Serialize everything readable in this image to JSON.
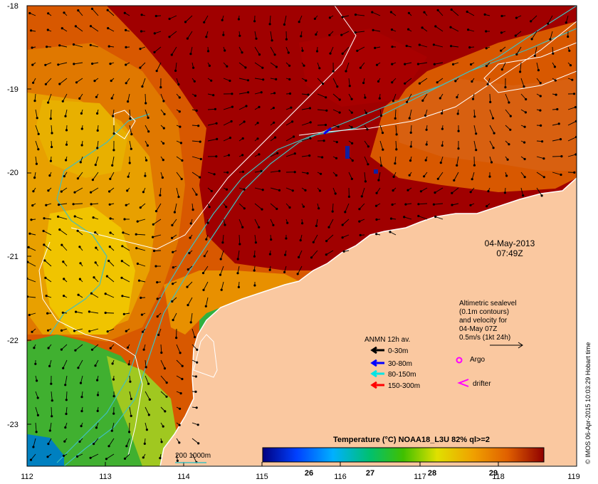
{
  "map": {
    "lon_ticks": [
      "112",
      "113",
      "114",
      "115",
      "116",
      "117",
      "118",
      "119"
    ],
    "lat_ticks": [
      "-18",
      "-19",
      "-20",
      "-21",
      "-22",
      "-23"
    ],
    "lon_range": [
      112,
      119
    ],
    "lat_range": [
      -18,
      -23.5
    ],
    "credit": "© IMOS 06-Apr-2015 10:03:29 Hobart time"
  },
  "date": {
    "day": "04-May-2013",
    "time": "07:49Z"
  },
  "sealevel_note": {
    "lines": [
      "Altimetric sealevel",
      "(0.1m contours)",
      "and velocity for",
      "04-May 07Z",
      "0.5m/s (1kt 24h)"
    ]
  },
  "legend": {
    "title": "ANMN 12h av.",
    "items": [
      {
        "label": "0-30m",
        "color": "#000000"
      },
      {
        "label": "30-80m",
        "color": "#0000ff"
      },
      {
        "label": "80-150m",
        "color": "#00e5e5"
      },
      {
        "label": "150-300m",
        "color": "#ff0000"
      }
    ],
    "argo": "Argo",
    "drifter": "drifter",
    "argo_color": "#ff00ff",
    "drifter_color": "#ff00ff"
  },
  "contour_legend": {
    "label": "200  1000m",
    "color": "#40c0c0"
  },
  "colorbar": {
    "title": "Temperature (°C) NOAA18_L3U 82% ql>=2",
    "ticks": [
      "26",
      "27",
      "28",
      "29"
    ],
    "range": [
      25,
      30
    ]
  },
  "colors": {
    "land": "#fac8a0",
    "hot": "#a00000",
    "warm": "#d04000",
    "orange": "#e88000",
    "yellow": "#f0c000",
    "green": "#30b040",
    "blue": "#0070d0",
    "isobath": "#40c0c0",
    "contour": "#ffffff"
  }
}
